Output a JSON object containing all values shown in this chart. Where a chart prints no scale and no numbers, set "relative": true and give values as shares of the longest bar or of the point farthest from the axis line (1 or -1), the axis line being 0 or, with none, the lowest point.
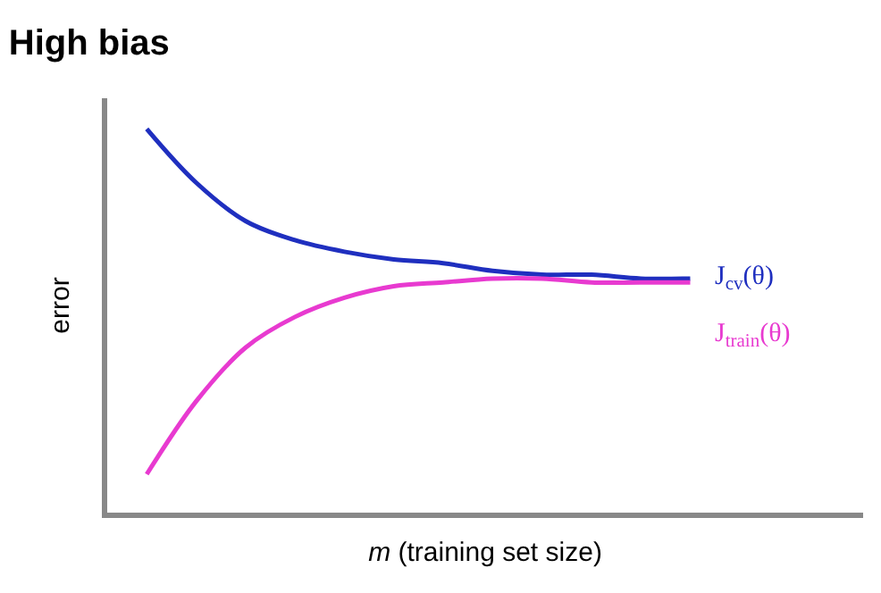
{
  "chart_data": {
    "type": "line",
    "title": "High bias",
    "xlabel": "m (training set size)",
    "ylabel": "error",
    "relative": true,
    "tick_labels": false,
    "legend": false,
    "marker": "none",
    "line_style": "solid",
    "categories": [
      null,
      null,
      null,
      null,
      null,
      null,
      null,
      null,
      null,
      null,
      null,
      null
    ],
    "series": [
      {
        "name": "J$_{cv}$(θ)",
        "color": "#1f2fbf",
        "values": [
          1.0,
          0.86,
          0.76,
          0.71,
          0.68,
          0.66,
          0.65,
          0.63,
          0.62,
          0.62,
          0.61,
          0.61
        ]
      },
      {
        "name": "J$_{train}$(θ)",
        "color": "#e83ad0",
        "values": [
          0.1,
          0.29,
          0.43,
          0.51,
          0.56,
          0.59,
          0.6,
          0.61,
          0.61,
          0.6,
          0.6,
          0.6
        ]
      }
    ]
  }
}
